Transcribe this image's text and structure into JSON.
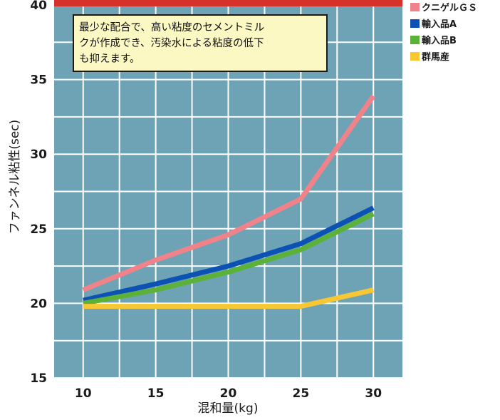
{
  "chart_data": {
    "type": "line",
    "xlabel": "混和量(kg)",
    "ylabel": "ファンネル粘性(sec)",
    "x": [
      10,
      15,
      20,
      25,
      30
    ],
    "xlim": [
      8,
      32
    ],
    "ylim": [
      15,
      40
    ],
    "x_ticks": [
      "10",
      "15",
      "20",
      "25",
      "30"
    ],
    "y_ticks": [
      "15",
      "20",
      "25",
      "30",
      "35",
      "40"
    ],
    "grid": true,
    "legend_position": "right",
    "annotation": {
      "lines": [
        "最少な配合で、高い粘度のセメントミル",
        "クが作成でき、汚染水による粘度の低下",
        "も抑えます。"
      ]
    },
    "series": [
      {
        "name": "クニゲルＧＳ",
        "values": [
          20.9,
          22.9,
          24.6,
          27.0,
          33.9
        ],
        "color": "#f0828a"
      },
      {
        "name": "輸入品A",
        "values": [
          20.2,
          21.3,
          22.5,
          24.0,
          26.4
        ],
        "color": "#0b52b4"
      },
      {
        "name": "輸入品B",
        "values": [
          20.0,
          20.9,
          22.1,
          23.6,
          26.0
        ],
        "color": "#5cb238"
      },
      {
        "name": "群馬産",
        "values": [
          19.8,
          19.8,
          19.8,
          19.8,
          20.9
        ],
        "color": "#f7c833"
      }
    ],
    "colors": {
      "plot_background": "#6ea3b5",
      "grid": "#ffffff",
      "top_band": "#d6322a",
      "annotation_fill": "#fbf8c4",
      "annotation_border": "#1a1a1a"
    }
  }
}
